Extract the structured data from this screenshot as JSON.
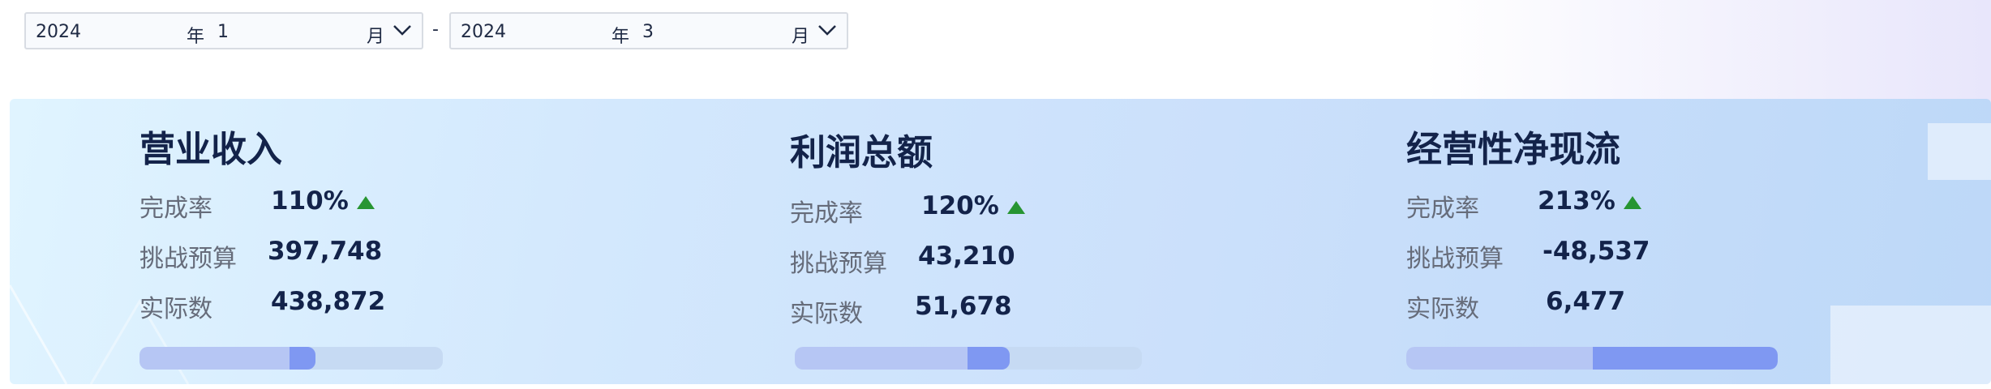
{
  "date_range": {
    "start": {
      "year": "2024",
      "year_unit": "年",
      "month": "1",
      "month_unit": "月"
    },
    "separator": "-",
    "end": {
      "year": "2024",
      "year_unit": "年",
      "month": "3",
      "month_unit": "月"
    }
  },
  "labels": {
    "rate": "完成率",
    "budget": "挑战预算",
    "actual": "实际数"
  },
  "metrics": [
    {
      "title": "营业收入",
      "rate": "110%",
      "trend": "up",
      "budget": "397,748",
      "actual": "438,872",
      "progress": 0.58
    },
    {
      "title": "利润总额",
      "rate": "120%",
      "trend": "up",
      "budget": "43,210",
      "actual": "51,678",
      "progress": 0.62
    },
    {
      "title": "经营性净现流",
      "rate": "213%",
      "trend": "up",
      "budget": "-48,537",
      "actual": "6,477",
      "progress": 1.0
    }
  ],
  "colors": {
    "trend_up": "#279532",
    "title": "#13234a",
    "progress_fill": "#b6c6f4",
    "progress_tip": "#7f98f2"
  }
}
